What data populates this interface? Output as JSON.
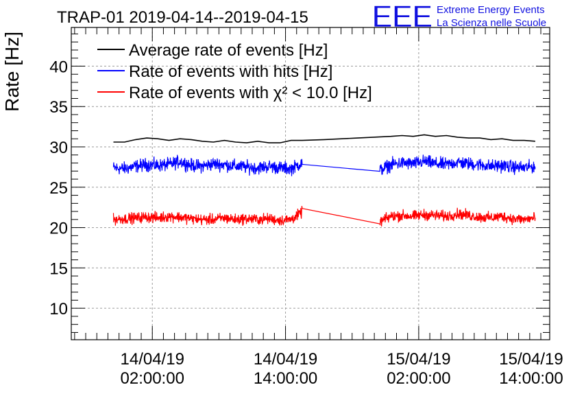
{
  "logo": {
    "text": "EEE",
    "line1": "Extreme Energy Events",
    "line2": "La Scienza nelle Scuole",
    "color": "#1010e0"
  },
  "chart_data": {
    "type": "line",
    "title": "TRAP-01 2019-04-14--2019-04-15",
    "ylabel": "Rate [Hz]",
    "xlabel": "",
    "ylim": [
      6.1,
      44.8
    ],
    "xlim": [
      -5.3,
      37.8
    ],
    "x_unit": "hours since 14/04/19 00:00:00",
    "grid": true,
    "yticks": [
      10,
      15,
      20,
      25,
      30,
      35,
      40
    ],
    "xticks": [
      {
        "hours": 2,
        "line1": "14/04/19",
        "line2": "02:00:00"
      },
      {
        "hours": 14,
        "line1": "14/04/19",
        "line2": "14:00:00"
      },
      {
        "hours": 26,
        "line1": "15/04/19",
        "line2": "02:00:00"
      },
      {
        "hours": 38,
        "line1": "15/04/19",
        "line2": "14:00:00"
      }
    ],
    "legend_position": "top-left",
    "legend": [
      {
        "label": "Average rate of events [Hz]",
        "color": "#000000"
      },
      {
        "label": "Rate of events with hits [Hz]",
        "color": "#0000ff"
      },
      {
        "label": "Rate of events with χ² < 10.0 [Hz]",
        "color": "#ff0000"
      }
    ],
    "series": [
      {
        "name": "Average rate of events [Hz]",
        "color": "#000000",
        "x": [
          -1.5,
          -0.5,
          0.5,
          1.5,
          2.5,
          3.5,
          4.5,
          5.5,
          6.5,
          7.5,
          8.5,
          9.5,
          10.5,
          11.5,
          12.5,
          13.5,
          14.5,
          15.5,
          17.5,
          20.5,
          23.5,
          24.5,
          25.5,
          26.5,
          27.5,
          28.5,
          29.5,
          30.5,
          31.5,
          32.5,
          33.5,
          34.5,
          35.5,
          36.5
        ],
        "y": [
          30.6,
          30.6,
          30.9,
          31.1,
          31.0,
          30.8,
          31.0,
          30.9,
          30.7,
          30.6,
          30.8,
          30.6,
          30.5,
          30.7,
          30.5,
          30.5,
          30.8,
          30.8,
          30.9,
          31.1,
          31.3,
          31.4,
          31.3,
          31.5,
          31.3,
          31.4,
          31.2,
          31.1,
          31.1,
          30.9,
          31.0,
          30.8,
          30.8,
          30.7
        ]
      },
      {
        "name": "Rate of events with hits [Hz]",
        "color": "#0000ff",
        "x": [
          -1.5,
          -0.5,
          0.5,
          1.5,
          2.5,
          3.5,
          4.5,
          5.5,
          6.5,
          7.5,
          8.5,
          9.5,
          10.5,
          11.5,
          12.5,
          13.5,
          14.5,
          15.5,
          22.5,
          23.5,
          24.5,
          25.5,
          26.5,
          27.5,
          28.5,
          29.5,
          30.5,
          31.5,
          32.5,
          33.5,
          34.5,
          35.5,
          36.5
        ],
        "y": [
          27.4,
          27.3,
          27.6,
          27.8,
          27.7,
          27.8,
          28.2,
          27.7,
          27.6,
          27.9,
          27.8,
          27.6,
          27.5,
          27.4,
          27.6,
          27.4,
          27.3,
          28.0,
          27.1,
          27.8,
          28.0,
          27.9,
          28.2,
          27.9,
          27.8,
          28.1,
          27.9,
          27.8,
          27.6,
          27.7,
          27.5,
          27.4,
          27.6
        ],
        "noise_amplitude_hz": 1.2
      },
      {
        "name": "Rate of events with χ² < 10.0 [Hz]",
        "color": "#ff0000",
        "x": [
          -1.5,
          -0.5,
          0.5,
          1.5,
          2.5,
          3.5,
          4.5,
          5.5,
          6.5,
          7.5,
          8.5,
          9.5,
          10.5,
          11.5,
          12.5,
          13.5,
          14.5,
          15.5,
          22.5,
          23.5,
          24.5,
          25.5,
          26.5,
          27.5,
          28.5,
          29.5,
          30.5,
          31.5,
          32.5,
          33.5,
          34.5,
          35.5,
          36.5
        ],
        "y": [
          21.0,
          21.1,
          21.2,
          21.3,
          21.2,
          21.4,
          21.3,
          21.1,
          21.0,
          21.0,
          21.2,
          21.0,
          21.1,
          21.0,
          21.1,
          20.9,
          21.0,
          21.9,
          20.7,
          21.4,
          21.5,
          21.4,
          21.6,
          21.5,
          21.4,
          21.7,
          21.5,
          21.3,
          21.2,
          21.4,
          21.1,
          21.0,
          21.2
        ],
        "noise_amplitude_hz": 1.0
      }
    ]
  }
}
